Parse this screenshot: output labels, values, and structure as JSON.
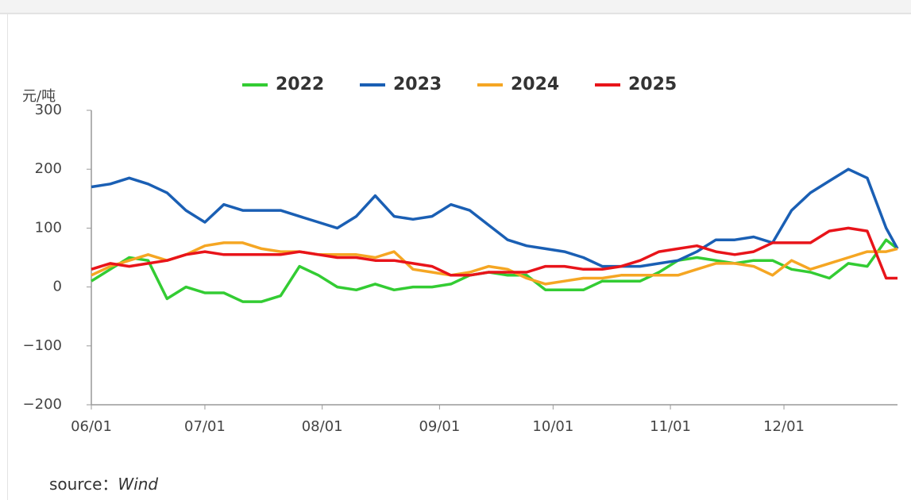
{
  "chart_data": {
    "type": "line",
    "y_label": "元/吨",
    "source_label": "source：",
    "source": "Wind",
    "x": [
      0,
      5,
      10,
      15,
      20,
      25,
      30,
      35,
      40,
      45,
      50,
      55,
      60,
      65,
      70,
      75,
      80,
      85,
      90,
      95,
      100,
      105,
      110,
      115,
      120,
      125,
      130,
      135,
      140,
      145,
      150,
      155,
      160,
      165,
      170,
      175,
      180,
      185,
      190,
      195,
      200,
      205,
      210,
      213
    ],
    "xlim": [
      0,
      213
    ],
    "xticks": [
      {
        "value": 0,
        "label": "06/01"
      },
      {
        "value": 30,
        "label": "07/01"
      },
      {
        "value": 61,
        "label": "08/01"
      },
      {
        "value": 92,
        "label": "09/01"
      },
      {
        "value": 122,
        "label": "10/01"
      },
      {
        "value": 153,
        "label": "11/01"
      },
      {
        "value": 183,
        "label": "12/01"
      }
    ],
    "ylim": [
      -200,
      300
    ],
    "yticks": [
      {
        "value": -200,
        "label": "−200"
      },
      {
        "value": -100,
        "label": "−100"
      },
      0,
      100,
      200,
      300
    ],
    "grid": false,
    "legend": "top",
    "series": [
      {
        "name": "2022",
        "color": "#33cc33",
        "values": [
          10,
          30,
          50,
          45,
          -20,
          0,
          -10,
          -10,
          -25,
          -25,
          -15,
          35,
          20,
          0,
          -5,
          5,
          -5,
          0,
          0,
          5,
          20,
          25,
          20,
          20,
          -5,
          -5,
          -5,
          10,
          10,
          10,
          25,
          45,
          50,
          45,
          40,
          45,
          45,
          30,
          25,
          15,
          40,
          35,
          80,
          65
        ]
      },
      {
        "name": "2023",
        "color": "#1a5fb4",
        "values": [
          170,
          175,
          185,
          175,
          160,
          130,
          110,
          140,
          130,
          130,
          130,
          120,
          110,
          100,
          120,
          155,
          120,
          115,
          120,
          140,
          130,
          105,
          80,
          70,
          65,
          60,
          50,
          35,
          35,
          35,
          40,
          45,
          60,
          80,
          80,
          85,
          75,
          130,
          160,
          180,
          200,
          185,
          100,
          65
        ]
      },
      {
        "name": "2024",
        "color": "#f5a623",
        "values": [
          20,
          35,
          45,
          55,
          45,
          55,
          70,
          75,
          75,
          65,
          60,
          60,
          55,
          55,
          55,
          50,
          60,
          30,
          25,
          20,
          25,
          35,
          30,
          15,
          5,
          10,
          15,
          15,
          20,
          20,
          20,
          20,
          30,
          40,
          40,
          35,
          20,
          45,
          30,
          40,
          50,
          60,
          60,
          65
        ]
      },
      {
        "name": "2025",
        "color": "#e8141a",
        "values": [
          30,
          40,
          35,
          40,
          45,
          55,
          60,
          55,
          55,
          55,
          55,
          60,
          55,
          50,
          50,
          45,
          45,
          40,
          35,
          20,
          20,
          25,
          25,
          25,
          35,
          35,
          30,
          30,
          35,
          45,
          60,
          65,
          70,
          60,
          55,
          60,
          75,
          75,
          75,
          95,
          100,
          95,
          15,
          15
        ]
      }
    ]
  }
}
